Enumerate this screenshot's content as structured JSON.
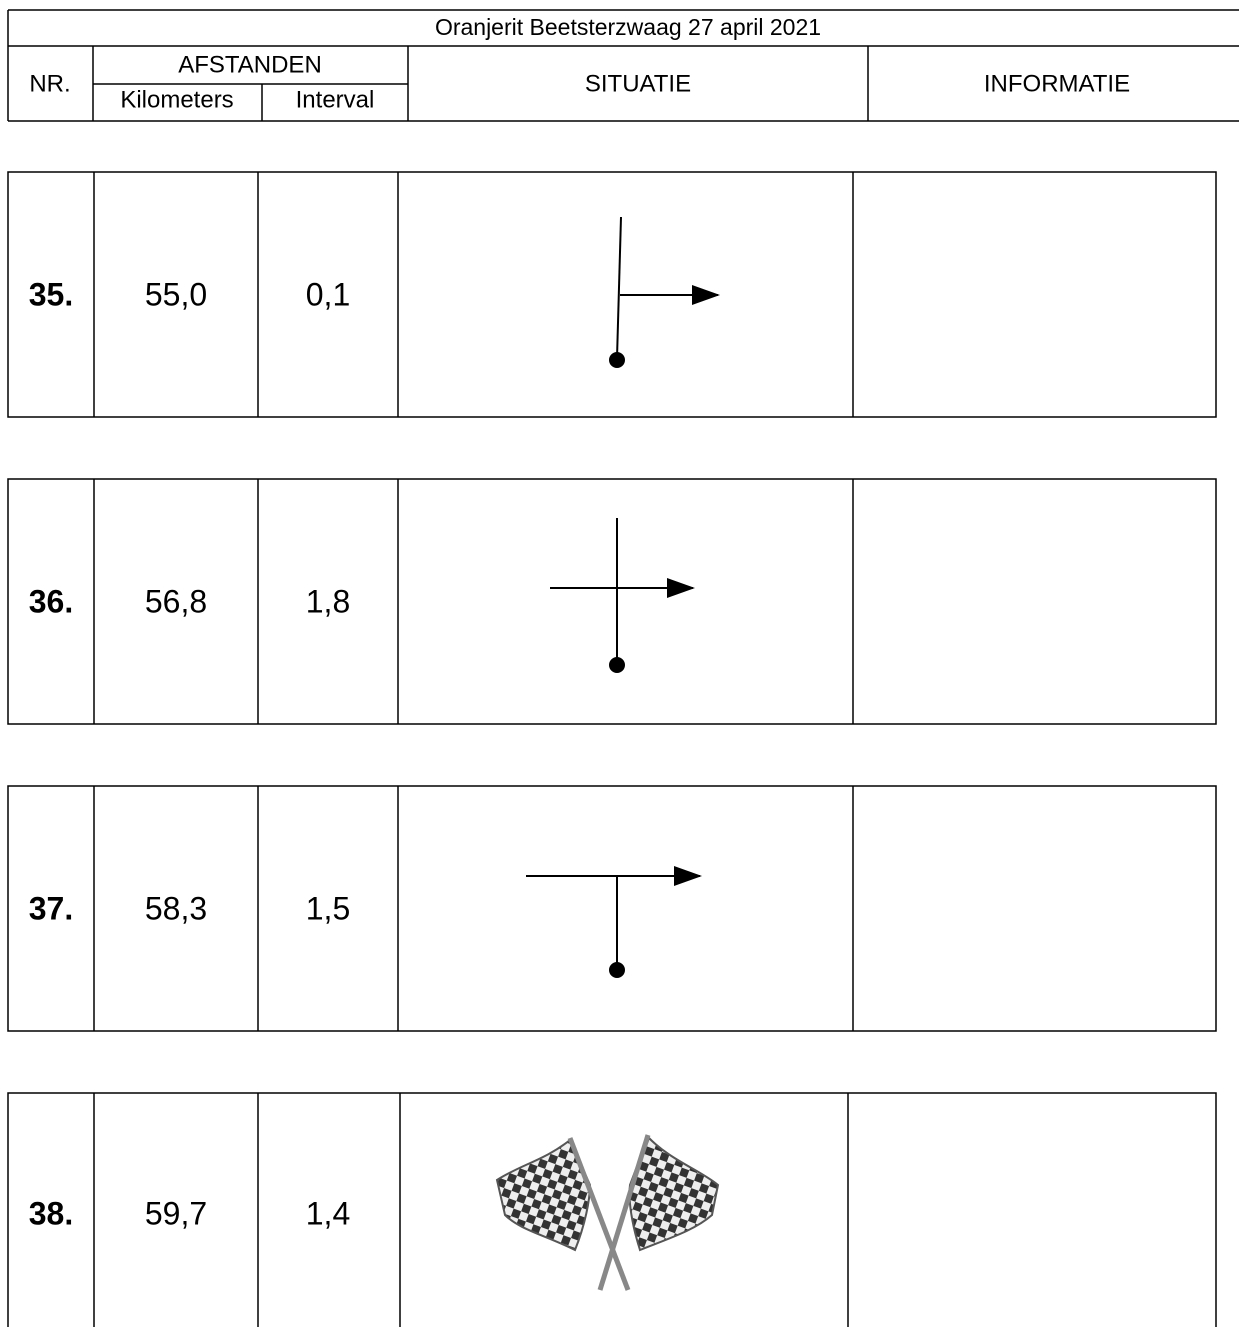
{
  "header": {
    "title": "Oranjerit Beetsterzwaag 27 april 2021",
    "nr": "NR.",
    "distances": "AFSTANDEN",
    "kilometers": "Kilometers",
    "interval": "Interval",
    "situation": "SITUATIE",
    "information": "INFORMATIE"
  },
  "rows": [
    {
      "nr": "35.",
      "kilometers": "55,0",
      "interval": "0,1"
    },
    {
      "nr": "36.",
      "kilometers": "56,8",
      "interval": "1,8"
    },
    {
      "nr": "37.",
      "kilometers": "58,3",
      "interval": "1,5"
    },
    {
      "nr": "38.",
      "kilometers": "59,7",
      "interval": "1,4"
    }
  ]
}
